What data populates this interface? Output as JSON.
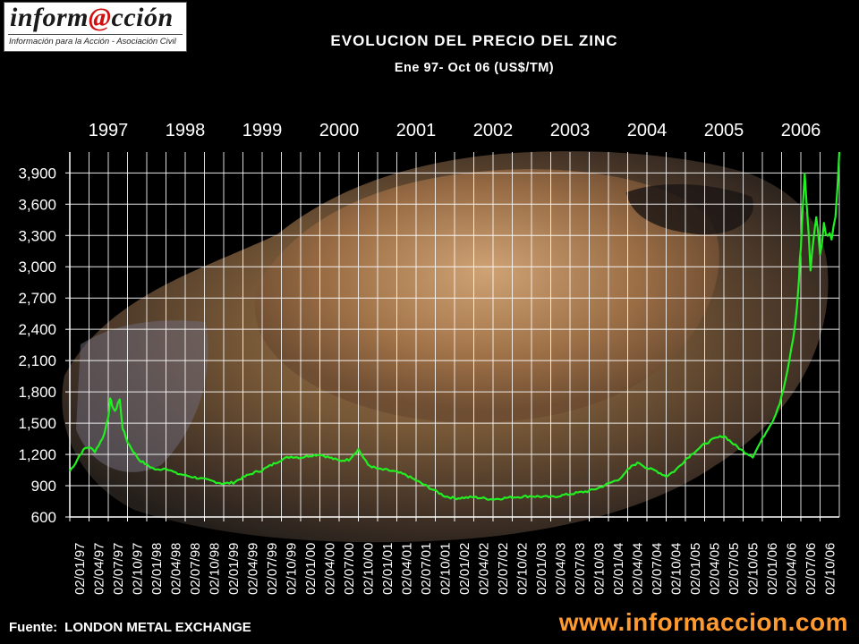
{
  "logo": {
    "name_prefix": "inform",
    "name_at": "@",
    "name_suffix": "cción",
    "tagline": "Información para la Acción - Asociación Civil"
  },
  "header": {
    "title": "EVOLUCION DEL PRECIO DEL ZINC",
    "subtitle": "Ene 97- Oct 06 (US$/TM)"
  },
  "footer": {
    "source_label": "Fuente:",
    "source_value": "LONDON METAL EXCHANGE",
    "website": "www.informaccion.com"
  },
  "colors": {
    "line": "#22ee22",
    "grid": "#ffffff",
    "text": "#ffffff",
    "website": "#ff9a2e"
  },
  "chart_data": {
    "type": "line",
    "title": "EVOLUCION DEL PRECIO DEL ZINC",
    "subtitle": "Ene 97- Oct 06 (US$/TM)",
    "ylim": [
      600,
      4100
    ],
    "yticks": [
      600,
      900,
      1200,
      1500,
      1800,
      2100,
      2400,
      2700,
      3000,
      3300,
      3600,
      3900
    ],
    "ytick_labels": [
      "600",
      "900",
      "1,200",
      "1,500",
      "1,800",
      "2,100",
      "2,400",
      "2,700",
      "3,000",
      "3,300",
      "3,600",
      "3,900"
    ],
    "grid": true,
    "year_labels": [
      "1997",
      "1998",
      "1999",
      "2000",
      "2001",
      "2002",
      "2003",
      "2004",
      "2005",
      "2006"
    ],
    "xtick_labels": [
      "02/01/97",
      "02/04/97",
      "02/07/97",
      "02/10/97",
      "02/01/98",
      "02/04/98",
      "02/07/98",
      "02/10/98",
      "02/01/99",
      "02/04/99",
      "02/07/99",
      "02/10/99",
      "02/01/00",
      "02/04/00",
      "02/07/00",
      "02/10/00",
      "02/01/01",
      "02/04/01",
      "02/07/01",
      "02/10/01",
      "02/01/02",
      "02/04/02",
      "02/07/02",
      "02/10/02",
      "02/01/03",
      "02/04/03",
      "02/07/03",
      "02/10/03",
      "02/01/04",
      "02/04/04",
      "02/07/04",
      "02/10/04",
      "02/01/05",
      "02/04/05",
      "02/07/05",
      "02/10/05",
      "02/01/06",
      "02/04/06",
      "02/07/06",
      "02/10/06"
    ],
    "series": [
      {
        "x": [
          0,
          0.3,
          0.5,
          0.8,
          1.0,
          1.3,
          1.6,
          1.8,
          2.0,
          2.1,
          2.2,
          2.35,
          2.5,
          2.6,
          2.75,
          3.0,
          3.3,
          3.6,
          4.0,
          4.5,
          5.0,
          5.5,
          6.0,
          6.5,
          7.0,
          7.5,
          8.0,
          8.5,
          9.0,
          9.5,
          10.0,
          10.5,
          11.0,
          11.5,
          12.0,
          12.5,
          13.0,
          13.5,
          14.0,
          14.5,
          15.0,
          15.5,
          16.0,
          16.5,
          17.0,
          17.5,
          18.0,
          18.5,
          19.0,
          19.5,
          20.0,
          21.0,
          22.0,
          23.0,
          24.0,
          25.0,
          26.0,
          27.0,
          27.5,
          28.0,
          28.5,
          28.8,
          29.0,
          29.3,
          29.6,
          30.0,
          30.5,
          31.0,
          31.5,
          32.0,
          32.5,
          33.0,
          33.5,
          34.0,
          34.5,
          35.0,
          35.5,
          36.0,
          36.3,
          36.6,
          36.9,
          37.2,
          37.4,
          37.6,
          37.8,
          37.9,
          38.0,
          38.2,
          38.5,
          38.8,
          39.0,
          39.2,
          39.4,
          39.6,
          39.8,
          40.0
        ],
        "y": [
          1040,
          1120,
          1190,
          1260,
          1270,
          1230,
          1320,
          1400,
          1570,
          1720,
          1680,
          1600,
          1700,
          1720,
          1450,
          1320,
          1230,
          1150,
          1100,
          1050,
          1070,
          1020,
          1000,
          980,
          960,
          940,
          920,
          930,
          980,
          1020,
          1050,
          1100,
          1150,
          1180,
          1170,
          1190,
          1200,
          1170,
          1140,
          1150,
          1250,
          1100,
          1060,
          1050,
          1030,
          1000,
          950,
          900,
          850,
          800,
          780,
          790,
          770,
          790,
          800,
          790,
          820,
          850,
          880,
          920,
          960,
          1000,
          1050,
          1100,
          1120,
          1070,
          1040,
          990,
          1050,
          1150,
          1230,
          1300,
          1350,
          1380,
          1300,
          1230,
          1180,
          1350,
          1450,
          1550,
          1700,
          1900,
          2100,
          2300,
          2600,
          2900,
          3200,
          3900,
          3000,
          3500,
          3100,
          3400,
          3300,
          3300,
          3500,
          4100
        ]
      }
    ]
  }
}
